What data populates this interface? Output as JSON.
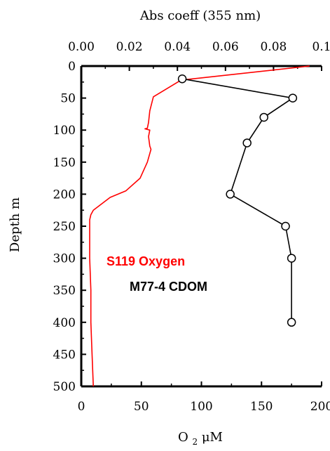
{
  "chart_data": {
    "type": "line",
    "title": "",
    "top_axis": {
      "label": "Abs coeff (355 nm)",
      "range": [
        0.0,
        0.1
      ],
      "ticks": [
        0.0,
        0.02,
        0.04,
        0.06,
        0.08,
        0.1
      ],
      "tick_labels": [
        "0.00",
        "0.02",
        "0.04",
        "0.06",
        "0.08",
        "0.1"
      ]
    },
    "bottom_axis": {
      "label_main": "O",
      "label_sub": "2",
      "label_unit": " μM",
      "range": [
        0,
        200
      ],
      "ticks": [
        0,
        50,
        100,
        150,
        200
      ],
      "tick_labels": [
        "0",
        "50",
        "100",
        "150",
        "200"
      ]
    },
    "y_axis": {
      "label": "Depth m",
      "range": [
        0,
        500
      ],
      "inverted": true,
      "ticks": [
        0,
        50,
        100,
        150,
        200,
        250,
        300,
        350,
        400,
        450,
        500
      ],
      "tick_labels": [
        "0",
        "50",
        "100",
        "150",
        "200",
        "250",
        "300",
        "350",
        "400",
        "450",
        "500"
      ]
    },
    "series": [
      {
        "name": "S119 Oxygen",
        "color": "#ff0000",
        "axis": "bottom",
        "marker": "none",
        "points": [
          [
            190,
            0
          ],
          [
            83,
            22
          ],
          [
            60,
            48
          ],
          [
            57,
            70
          ],
          [
            56,
            88
          ],
          [
            55,
            97
          ],
          [
            53,
            98
          ],
          [
            57,
            100
          ],
          [
            56,
            110
          ],
          [
            57,
            125
          ],
          [
            58,
            130
          ],
          [
            55,
            150
          ],
          [
            49,
            175
          ],
          [
            37,
            195
          ],
          [
            24,
            205
          ],
          [
            10,
            225
          ],
          [
            8,
            232
          ],
          [
            7,
            240
          ],
          [
            7,
            300
          ],
          [
            8,
            350
          ],
          [
            8,
            400
          ],
          [
            9,
            450
          ],
          [
            10,
            500
          ]
        ]
      },
      {
        "name": "M77-4 CDOM",
        "color": "#000000",
        "axis": "top",
        "marker": "circle",
        "points": [
          [
            0.042,
            20
          ],
          [
            0.088,
            50
          ],
          [
            0.076,
            80
          ],
          [
            0.069,
            120
          ],
          [
            0.062,
            200
          ],
          [
            0.085,
            250
          ],
          [
            0.0875,
            300
          ],
          [
            0.0875,
            400
          ]
        ]
      }
    ],
    "annotations": [
      {
        "text": "S119 Oxygen",
        "color": "#ff0000"
      },
      {
        "text": "M77-4 CDOM",
        "color": "#000000"
      }
    ],
    "grid": false,
    "legend": "inside-left"
  }
}
